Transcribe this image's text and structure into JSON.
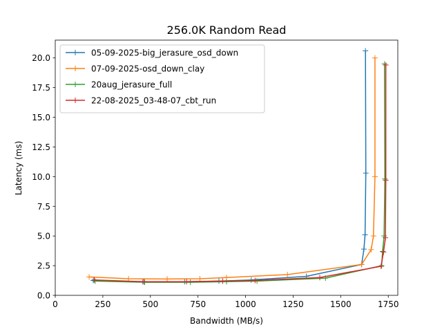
{
  "chart_data": {
    "type": "line",
    "title": "256.0K  Random Read",
    "xlabel": "Bandwidth (MB/s)",
    "ylabel": "Latency (ms)",
    "xlim": [
      0,
      1800
    ],
    "ylim": [
      0,
      21.5
    ],
    "xticks": [
      0,
      250,
      500,
      750,
      1000,
      1250,
      1500,
      1750
    ],
    "yticks": [
      0.0,
      2.5,
      5.0,
      7.5,
      10.0,
      12.5,
      15.0,
      17.5,
      20.0
    ],
    "xtick_labels": [
      "0",
      "250",
      "500",
      "750",
      "1000",
      "1250",
      "1500",
      "1750"
    ],
    "ytick_labels": [
      "0.0",
      "2.5",
      "5.0",
      "7.5",
      "10.0",
      "12.5",
      "15.0",
      "17.5",
      "20.0"
    ],
    "grid": false,
    "legend_position": "upper-left",
    "series": [
      {
        "name": "05-09-2025-big_jerasure_osd_down",
        "color": "#1f77b4",
        "x": [
          200,
          460,
          680,
          860,
          1030,
          1320,
          1610,
          1622,
          1628,
          1632,
          1630
        ],
        "y": [
          1.25,
          1.15,
          1.15,
          1.2,
          1.3,
          1.6,
          2.6,
          3.9,
          5.1,
          10.3,
          20.6
        ]
      },
      {
        "name": "07-09-2025-osd_down_clay",
        "color": "#ff7f0e",
        "x": [
          178,
          385,
          588,
          760,
          900,
          1220,
          1610,
          1660,
          1672,
          1680,
          1680
        ],
        "y": [
          1.55,
          1.4,
          1.38,
          1.4,
          1.5,
          1.75,
          2.6,
          3.85,
          5.0,
          10.0,
          20.0
        ]
      },
      {
        "name": "20aug_jerasure_full",
        "color": "#2ca02c",
        "x": [
          210,
          470,
          710,
          900,
          1060,
          1420,
          1715,
          1720,
          1728,
          1732,
          1730
        ],
        "y": [
          1.2,
          1.1,
          1.1,
          1.15,
          1.2,
          1.45,
          2.5,
          3.7,
          5.0,
          9.8,
          19.5
        ]
      },
      {
        "name": "22-08-2025_03-48-07_cbt_run",
        "color": "#d62728",
        "x": [
          205,
          465,
          690,
          880,
          1050,
          1390,
          1712,
          1725,
          1735,
          1737,
          1737
        ],
        "y": [
          1.3,
          1.15,
          1.15,
          1.2,
          1.25,
          1.5,
          2.45,
          3.65,
          4.85,
          9.7,
          19.4
        ]
      }
    ]
  }
}
